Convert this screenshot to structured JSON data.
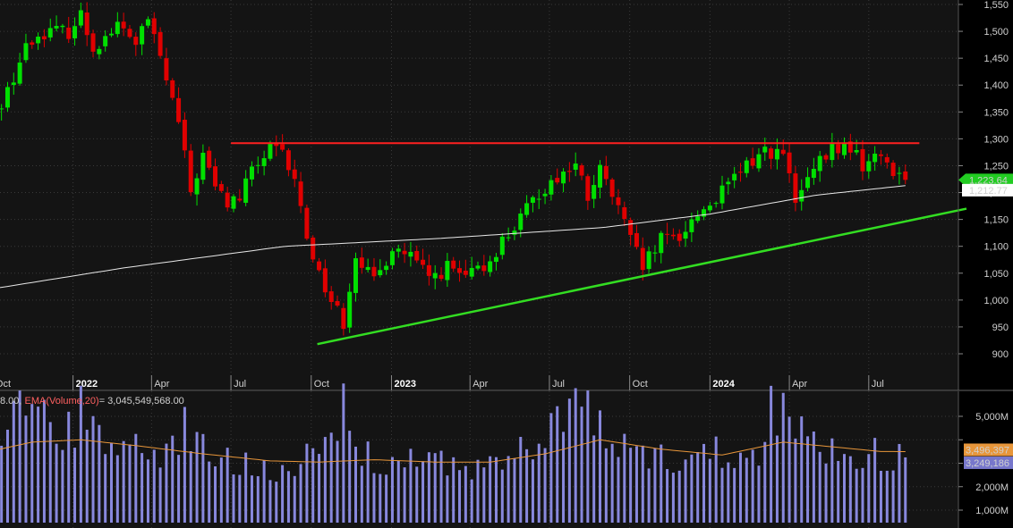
{
  "colors": {
    "background": "#000000",
    "panel": "#141414",
    "grid": "#3a3a3a",
    "up": "#00e000",
    "down": "#e00000",
    "ma_line": "#e8e8e8",
    "resistance": "#ff2020",
    "support": "#33dd22",
    "volume_bar": "#8888dd",
    "volume_ema": "#e8963a",
    "volume_label_key": "#ff6060"
  },
  "chart_data": [
    {
      "type": "candlestick",
      "title": "",
      "ylim": [
        860,
        1560
      ],
      "yticks": [
        900,
        950,
        1000,
        1050,
        1100,
        1150,
        1200,
        1250,
        1300,
        1350,
        1400,
        1450,
        1500,
        1550
      ],
      "ytick_labels": [
        "900",
        "950",
        "1,000",
        "1,050",
        "1,100",
        "1,150",
        "1,200",
        "1,250",
        "1,300",
        "1,350",
        "1,400",
        "1,450",
        "1,500",
        "1,550"
      ],
      "x_ticks": [
        {
          "date": "2021-10-01",
          "label": "Oct",
          "bold": false
        },
        {
          "date": "2022-01-01",
          "label": "2022",
          "bold": true
        },
        {
          "date": "2022-04-01",
          "label": "Apr",
          "bold": false
        },
        {
          "date": "2022-07-01",
          "label": "Jul",
          "bold": false
        },
        {
          "date": "2022-10-01",
          "label": "Oct",
          "bold": false
        },
        {
          "date": "2023-01-01",
          "label": "2023",
          "bold": true
        },
        {
          "date": "2023-04-01",
          "label": "Apr",
          "bold": false
        },
        {
          "date": "2023-07-01",
          "label": "Jul",
          "bold": false
        },
        {
          "date": "2023-10-01",
          "label": "Oct",
          "bold": false
        },
        {
          "date": "2024-01-01",
          "label": "2024",
          "bold": true
        },
        {
          "date": "2024-04-01",
          "label": "Apr",
          "bold": false
        },
        {
          "date": "2024-07-01",
          "label": "Jul",
          "bold": false
        }
      ],
      "xlim": [
        "2021-09-27",
        "2024-10-21"
      ],
      "weekly_close_anchors": [
        [
          "2021-09-27",
          1330
        ],
        [
          "2021-10-18",
          1390
        ],
        [
          "2021-11-08",
          1470
        ],
        [
          "2021-11-29",
          1500
        ],
        [
          "2021-12-27",
          1500
        ],
        [
          "2022-01-10",
          1530
        ],
        [
          "2022-01-24",
          1470
        ],
        [
          "2022-02-21",
          1510
        ],
        [
          "2022-03-14",
          1480
        ],
        [
          "2022-03-28",
          1520
        ],
        [
          "2022-04-11",
          1450
        ],
        [
          "2022-05-02",
          1330
        ],
        [
          "2022-05-16",
          1200
        ],
        [
          "2022-05-30",
          1270
        ],
        [
          "2022-06-13",
          1210
        ],
        [
          "2022-06-27",
          1180
        ],
        [
          "2022-07-11",
          1190
        ],
        [
          "2022-07-25",
          1240
        ],
        [
          "2022-08-15",
          1280
        ],
        [
          "2022-08-29",
          1270
        ],
        [
          "2022-09-12",
          1220
        ],
        [
          "2022-09-26",
          1120
        ],
        [
          "2022-10-10",
          1050
        ],
        [
          "2022-10-24",
          1000
        ],
        [
          "2022-11-07",
          960
        ],
        [
          "2022-11-21",
          1090
        ],
        [
          "2022-12-12",
          1030
        ],
        [
          "2023-01-02",
          1100
        ],
        [
          "2023-01-23",
          1080
        ],
        [
          "2023-02-13",
          1040
        ],
        [
          "2023-03-06",
          1060
        ],
        [
          "2023-03-27",
          1040
        ],
        [
          "2023-04-17",
          1060
        ],
        [
          "2023-05-08",
          1110
        ],
        [
          "2023-05-29",
          1150
        ],
        [
          "2023-06-19",
          1200
        ],
        [
          "2023-07-10",
          1230
        ],
        [
          "2023-07-31",
          1250
        ],
        [
          "2023-08-14",
          1190
        ],
        [
          "2023-08-28",
          1240
        ],
        [
          "2023-09-18",
          1170
        ],
        [
          "2023-10-02",
          1110
        ],
        [
          "2023-10-16",
          1060
        ],
        [
          "2023-11-06",
          1110
        ],
        [
          "2023-11-27",
          1120
        ],
        [
          "2023-12-18",
          1160
        ],
        [
          "2024-01-15",
          1200
        ],
        [
          "2024-02-12",
          1250
        ],
        [
          "2024-03-04",
          1280
        ],
        [
          "2024-03-25",
          1270
        ],
        [
          "2024-04-08",
          1180
        ],
        [
          "2024-04-29",
          1240
        ],
        [
          "2024-05-20",
          1280
        ],
        [
          "2024-06-10",
          1285
        ],
        [
          "2024-06-24",
          1250
        ],
        [
          "2024-07-15",
          1270
        ],
        [
          "2024-08-05",
          1230
        ],
        [
          "2024-08-12",
          1223.64
        ]
      ],
      "moving_average_anchors": [
        [
          "2021-09-27",
          1020
        ],
        [
          "2022-03-01",
          1060
        ],
        [
          "2022-09-01",
          1100
        ],
        [
          "2023-03-01",
          1115
        ],
        [
          "2023-09-01",
          1135
        ],
        [
          "2024-01-01",
          1160
        ],
        [
          "2024-05-01",
          1195
        ],
        [
          "2024-08-12",
          1213
        ]
      ],
      "resistance_line": {
        "from": [
          "2022-07-01",
          1292
        ],
        "to": [
          "2024-08-28",
          1292
        ]
      },
      "support_line": {
        "from": [
          "2022-10-08",
          918
        ],
        "to": [
          "2024-10-21",
          1170
        ]
      },
      "last_price": {
        "value": 1223.64,
        "label": "1,223.64"
      },
      "ma_value": {
        "value": 1212.77,
        "label": "1,212.77"
      },
      "axis_top_partial_label": "1,550"
    },
    {
      "type": "bar",
      "title": "",
      "indicator_label_prefix": "8.00, ",
      "indicator_label_name": "EMA(Volume,20)",
      "indicator_label_value": "= 3,045,549,568.00",
      "ylim": [
        0,
        6800
      ],
      "yticks": [
        1000,
        2000,
        3000,
        4000,
        5000
      ],
      "ytick_labels": [
        "1,000M",
        "2,000M",
        "",
        "",
        "5,000M"
      ],
      "volume_anchors_millions": [
        [
          "2021-09-27",
          3300
        ],
        [
          "2021-10-25",
          4800
        ],
        [
          "2021-11-22",
          5200
        ],
        [
          "2021-12-20",
          4200
        ],
        [
          "2022-01-17",
          4500
        ],
        [
          "2022-02-21",
          4000
        ],
        [
          "2022-03-21",
          3500
        ],
        [
          "2022-04-18",
          3600
        ],
        [
          "2022-05-16",
          4000
        ],
        [
          "2022-06-20",
          3000
        ],
        [
          "2022-07-18",
          3200
        ],
        [
          "2022-08-22",
          2800
        ],
        [
          "2022-09-19",
          3000
        ],
        [
          "2022-10-17",
          3600
        ],
        [
          "2022-11-07",
          4200
        ],
        [
          "2022-12-12",
          3000
        ],
        [
          "2023-01-16",
          3200
        ],
        [
          "2023-02-20",
          2900
        ],
        [
          "2023-03-20",
          3000
        ],
        [
          "2023-04-24",
          2800
        ],
        [
          "2023-05-22",
          3300
        ],
        [
          "2023-06-26",
          4200
        ],
        [
          "2023-07-24",
          4800
        ],
        [
          "2023-08-21",
          4500
        ],
        [
          "2023-09-25",
          3800
        ],
        [
          "2023-10-23",
          3300
        ],
        [
          "2023-11-20",
          3200
        ],
        [
          "2024-01-08",
          3500
        ],
        [
          "2024-02-19",
          3400
        ],
        [
          "2024-03-18",
          4600
        ],
        [
          "2024-04-15",
          4300
        ],
        [
          "2024-05-13",
          3600
        ],
        [
          "2024-06-17",
          3500
        ],
        [
          "2024-07-15",
          3300
        ],
        [
          "2024-08-12",
          3250
        ]
      ],
      "volume_spikes_millions": [
        [
          "2021-11-01",
          6100
        ],
        [
          "2021-11-29",
          5700
        ],
        [
          "2022-01-10",
          6300
        ],
        [
          "2022-05-09",
          5400
        ],
        [
          "2022-11-07",
          6400
        ],
        [
          "2023-07-31",
          6200
        ],
        [
          "2023-08-14",
          6100
        ],
        [
          "2024-03-11",
          6300
        ],
        [
          "2024-03-25",
          6000
        ]
      ],
      "ema_anchors_millions": [
        [
          "2021-09-27",
          3500
        ],
        [
          "2021-11-15",
          3900
        ],
        [
          "2022-01-10",
          4000
        ],
        [
          "2022-03-14",
          3750
        ],
        [
          "2022-05-30",
          3400
        ],
        [
          "2022-08-15",
          3100
        ],
        [
          "2022-10-10",
          3050
        ],
        [
          "2022-12-12",
          3150
        ],
        [
          "2023-02-20",
          3050
        ],
        [
          "2023-04-24",
          3050
        ],
        [
          "2023-06-26",
          3400
        ],
        [
          "2023-08-28",
          4000
        ],
        [
          "2023-11-06",
          3600
        ],
        [
          "2024-01-15",
          3350
        ],
        [
          "2024-03-25",
          3900
        ],
        [
          "2024-05-20",
          3700
        ],
        [
          "2024-07-15",
          3500
        ],
        [
          "2024-08-12",
          3496
        ]
      ],
      "ema_last": {
        "value": 3496.397,
        "label": "3,496,397"
      },
      "volume_last": {
        "value": 3249.186,
        "label": "3,249,186"
      }
    }
  ]
}
